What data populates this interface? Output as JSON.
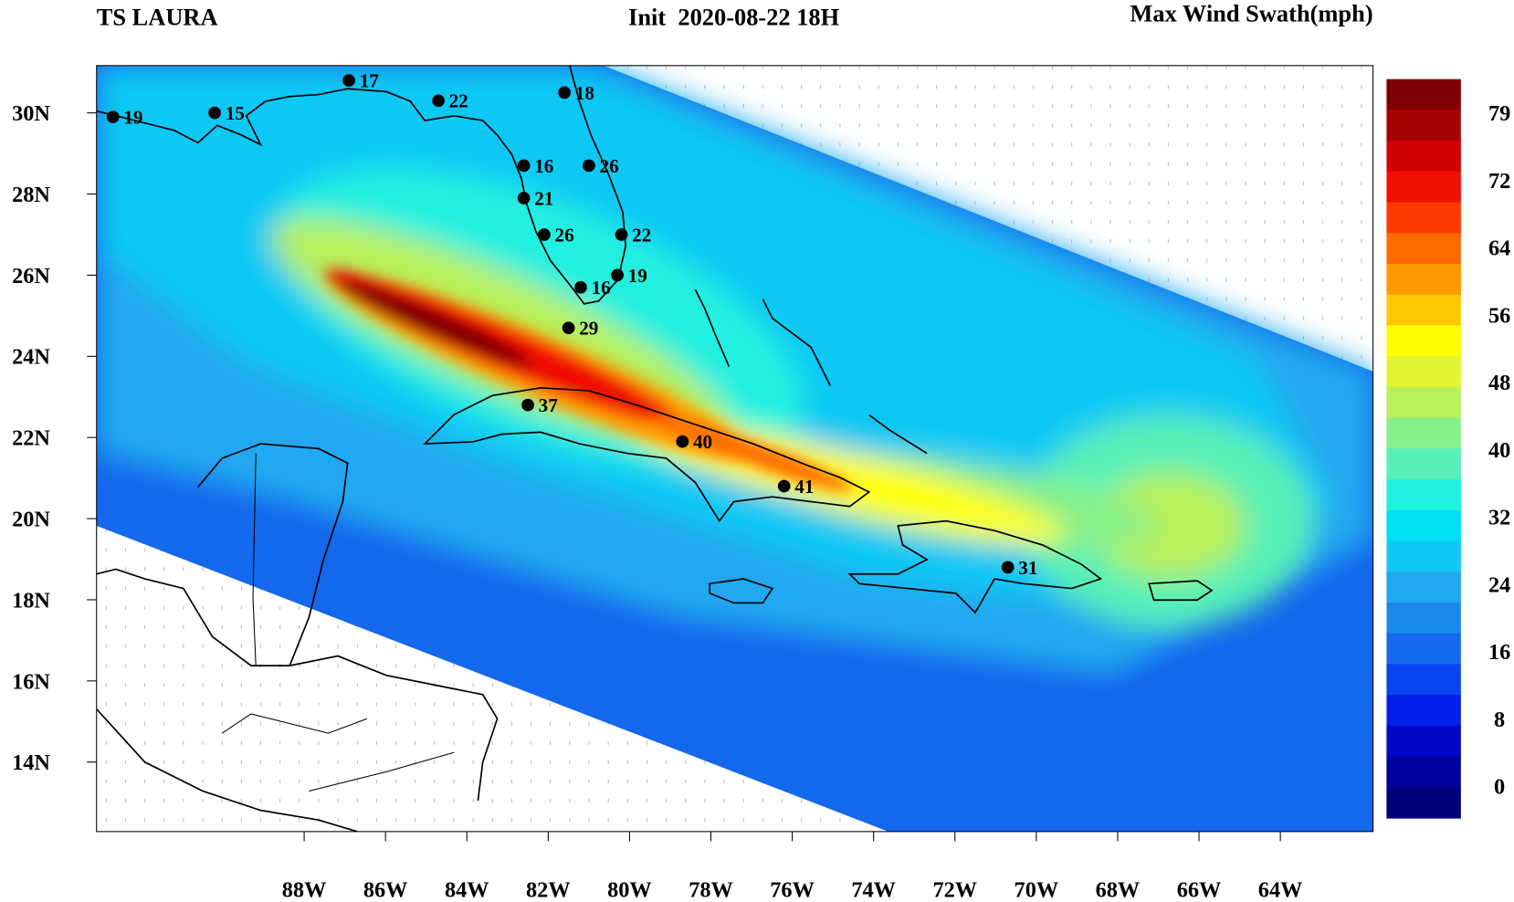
{
  "map": {
    "title": "TS LAURA",
    "init": "Init  2020-08-22 18H",
    "field": "Max Wind Swath(mph)",
    "lonticks": [
      {
        "value": -88,
        "label": "88W"
      },
      {
        "value": -86,
        "label": "86W"
      },
      {
        "value": -84,
        "label": "84W"
      },
      {
        "value": -82,
        "label": "82W"
      },
      {
        "value": -80,
        "label": "80W"
      },
      {
        "value": -78,
        "label": "78W"
      },
      {
        "value": -76,
        "label": "76W"
      },
      {
        "value": -74,
        "label": "74W"
      },
      {
        "value": -72,
        "label": "72W"
      },
      {
        "value": -70,
        "label": "70W"
      },
      {
        "value": -68,
        "label": "68W"
      },
      {
        "value": -66,
        "label": "66W"
      },
      {
        "value": -64,
        "label": "64W"
      }
    ],
    "latticks": [
      {
        "value": 30,
        "label": "30N"
      },
      {
        "value": 28,
        "label": "28N"
      },
      {
        "value": 26,
        "label": "26N"
      },
      {
        "value": 24,
        "label": "24N"
      },
      {
        "value": 22,
        "label": "22N"
      },
      {
        "value": 20,
        "label": "20N"
      },
      {
        "value": 18,
        "label": "18N"
      },
      {
        "value": 16,
        "label": "16N"
      },
      {
        "value": 14,
        "label": "14N"
      }
    ],
    "stations": [
      {
        "lon": -92.7,
        "lat": 29.9,
        "value": 19
      },
      {
        "lon": -90.2,
        "lat": 30.0,
        "value": 15
      },
      {
        "lon": -86.9,
        "lat": 30.8,
        "value": 17
      },
      {
        "lon": -84.7,
        "lat": 30.3,
        "value": 22
      },
      {
        "lon": -81.6,
        "lat": 30.5,
        "value": 18
      },
      {
        "lon": -82.6,
        "lat": 28.7,
        "value": 16
      },
      {
        "lon": -81.0,
        "lat": 28.7,
        "value": 26
      },
      {
        "lon": -82.6,
        "lat": 27.9,
        "value": 21
      },
      {
        "lon": -82.1,
        "lat": 27.0,
        "value": 26
      },
      {
        "lon": -80.2,
        "lat": 27.0,
        "value": 22
      },
      {
        "lon": -80.3,
        "lat": 26.0,
        "value": 19
      },
      {
        "lon": -81.2,
        "lat": 25.7,
        "value": 16
      },
      {
        "lon": -81.5,
        "lat": 24.7,
        "value": 29
      },
      {
        "lon": -82.5,
        "lat": 22.8,
        "value": 37
      },
      {
        "lon": -78.7,
        "lat": 21.9,
        "value": 40
      },
      {
        "lon": -76.2,
        "lat": 20.8,
        "value": 41
      },
      {
        "lon": -70.7,
        "lat": 18.8,
        "value": 31
      }
    ]
  },
  "colorbar": {
    "labels": [
      79,
      72,
      64,
      56,
      48,
      40,
      32,
      24,
      16,
      8,
      0
    ],
    "colors": [
      "#7f0000",
      "#a80000",
      "#d00000",
      "#f01000",
      "#ff3a00",
      "#ff6a00",
      "#ff9a00",
      "#ffc800",
      "#ffff00",
      "#e0f530",
      "#b8f05a",
      "#88f08a",
      "#58f0b8",
      "#20f0e0",
      "#00e0f4",
      "#10c8f4",
      "#20a8f0",
      "#1c88ec",
      "#1468ec",
      "#0a44f0",
      "#0020e8",
      "#0008c8",
      "#00009c",
      "#00007a"
    ]
  }
}
